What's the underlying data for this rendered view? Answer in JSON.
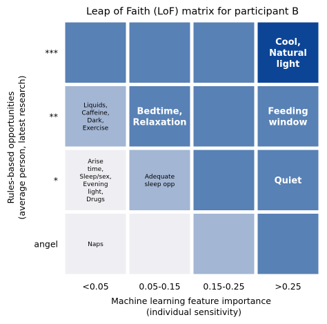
{
  "chart_data": {
    "type": "heatmap",
    "title": "Leap of Faith (LoF) matrix for participant B",
    "xlabel": [
      "Machine learning feature importance",
      "(individual sensitivity)"
    ],
    "ylabel": [
      "Rules-based opportunities",
      "(average person, latest research)"
    ],
    "x_categories": [
      "<0.05",
      "0.05-0.15",
      "0.15-0.25",
      ">0.25"
    ],
    "y_categories": [
      "***",
      "**",
      "*",
      "angel"
    ],
    "levels": {
      "0": "#efeff3",
      "1": "#a3b6d4",
      "2": "#5881b5",
      "3": "#0c4596"
    },
    "grid": [
      [
        2,
        2,
        2,
        3
      ],
      [
        1,
        2,
        2,
        2
      ],
      [
        0,
        1,
        2,
        2
      ],
      [
        0,
        0,
        1,
        2
      ]
    ],
    "annotations": [
      [
        null,
        null,
        null,
        [
          "Cool,",
          "Natural",
          "light"
        ]
      ],
      [
        [
          "Liquids,",
          "Caffeine,",
          "Dark,",
          "Exercise"
        ],
        [
          "Bedtime,",
          "Relaxation"
        ],
        null,
        [
          "Feeding",
          "window"
        ]
      ],
      [
        [
          "Arise",
          "time,",
          "Sleep/sex,",
          "Evening",
          "light,",
          "Drugs"
        ],
        [
          "Adequate",
          "sleep opp"
        ],
        null,
        [
          "Quiet"
        ]
      ],
      [
        [
          "Naps"
        ],
        null,
        null,
        null
      ]
    ],
    "annotation_style": [
      [
        null,
        null,
        null,
        "bold"
      ],
      [
        "small",
        "bold",
        null,
        "bold"
      ],
      [
        "small",
        "small",
        null,
        "bold"
      ],
      [
        "small",
        null,
        null,
        null
      ]
    ]
  }
}
